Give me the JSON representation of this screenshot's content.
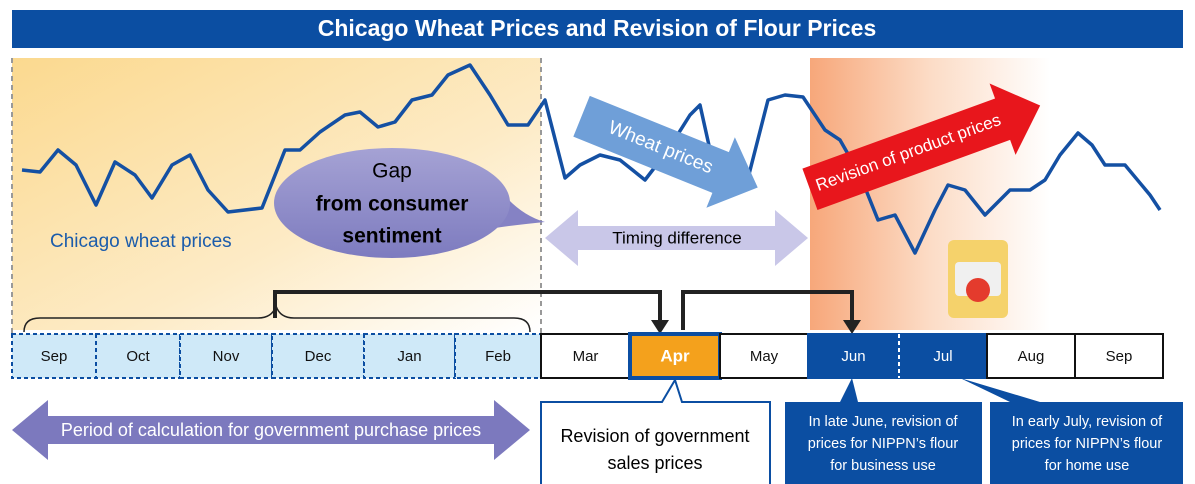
{
  "header": {
    "title": "Chicago Wheat Prices and Revision of Flour Prices"
  },
  "line_label": "Chicago wheat prices",
  "gap_bubble": {
    "lines": [
      "Gap",
      "from consumer",
      "sentiment"
    ]
  },
  "wheat_arrow": "Wheat prices",
  "timing_arrow": "Timing difference",
  "product_arrow": "Revision of product prices",
  "months": [
    "Sep",
    "Oct",
    "Nov",
    "Dec",
    "Jan",
    "Feb",
    "Mar",
    "Apr",
    "May",
    "Jun",
    "Jul",
    "Aug",
    "Sep"
  ],
  "period_arrow": "Period of calculation for government purchase prices",
  "gov_callout": {
    "lines": [
      "Revision of government",
      "sales prices"
    ]
  },
  "business_callout": {
    "lines": [
      "In late June, revision of",
      "prices for NIPPN’s flour",
      "for business use"
    ]
  },
  "home_callout": {
    "lines": [
      "In early July, revision of",
      "prices for NIPPN’s flour",
      "for home use"
    ]
  }
}
